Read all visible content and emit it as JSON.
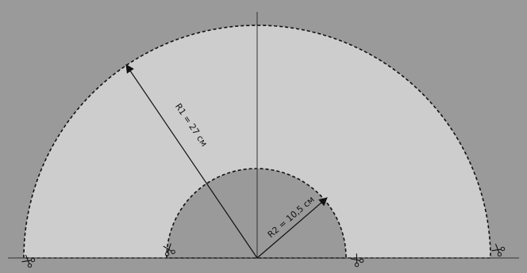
{
  "diagram": {
    "outer_radius_label": "R1 = 27 см",
    "inner_radius_label": "R2 = 10,5 см",
    "outer_radius_cm": 27,
    "inner_radius_cm": 10.5,
    "colors": {
      "background": "#9a9a9a",
      "ring_fill": "#cdcdcd",
      "inner_fill": "#9a9a9a",
      "stroke": "#111111"
    },
    "cut_marks": [
      "scissors-icon",
      "scissors-icon",
      "scissors-icon",
      "scissors-icon"
    ]
  }
}
